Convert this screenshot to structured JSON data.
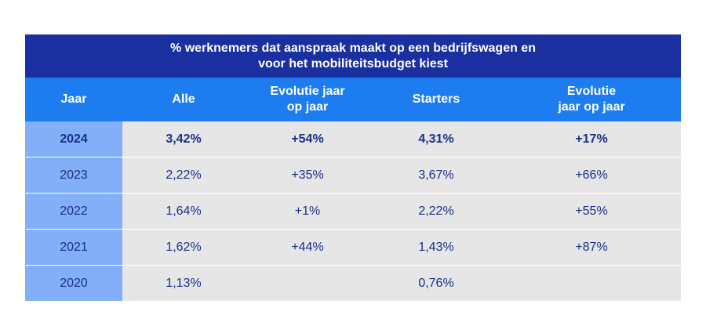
{
  "title": {
    "line1": "% werknemers dat aanspraak maakt op een bedrijfswagen en",
    "line2": "voor het mobiliteitsbudget kiest"
  },
  "chart_data": {
    "type": "table",
    "columns": [
      {
        "line1": "Jaar",
        "line2": ""
      },
      {
        "line1": "Alle",
        "line2": ""
      },
      {
        "line1": "Evolutie jaar",
        "line2": "op jaar"
      },
      {
        "line1": "Starters",
        "line2": ""
      },
      {
        "line1": "Evolutie",
        "line2": "jaar op jaar"
      }
    ],
    "rows": [
      {
        "year": "2024",
        "alle": "3,42%",
        "evolutie_alle": "+54%",
        "starters": "4,31%",
        "evolutie_starters": "+17%",
        "highlight": true
      },
      {
        "year": "2023",
        "alle": "2,22%",
        "evolutie_alle": "+35%",
        "starters": "3,67%",
        "evolutie_starters": "+66%"
      },
      {
        "year": "2022",
        "alle": "1,64%",
        "evolutie_alle": "+1%",
        "starters": "2,22%",
        "evolutie_starters": "+55%"
      },
      {
        "year": "2021",
        "alle": "1,62%",
        "evolutie_alle": "+44%",
        "starters": "1,43%",
        "evolutie_starters": "+87%"
      },
      {
        "year": "2020",
        "alle": "1,13%",
        "evolutie_alle": "",
        "starters": "0,76%",
        "evolutie_starters": ""
      }
    ]
  },
  "colors": {
    "title_bg": "#1a2fa0",
    "header_bg": "#1d7df0",
    "year_col_bg": "#82aff7",
    "cell_bg": "#e6e6e6",
    "text": "#1a2f8a"
  }
}
